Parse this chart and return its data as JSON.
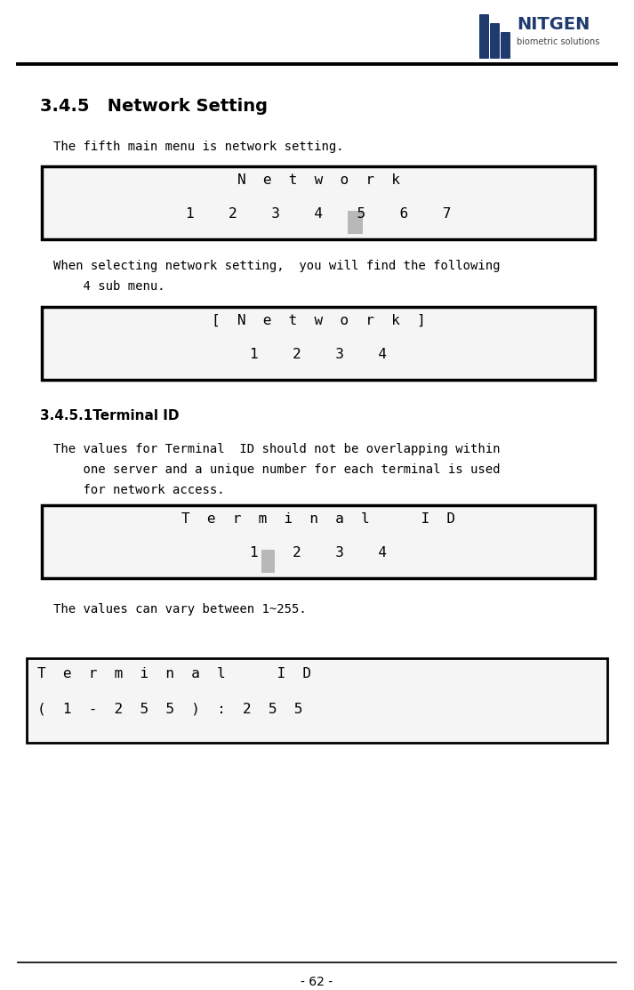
{
  "page_num": "- 62 -",
  "section_title": "3.4.5   Network Setting",
  "para1": "The fifth main menu is network setting.",
  "box1_row1": "          N  e  t  w  o  r  k",
  "box1_row2": "  1    2    3    4    5    6    7",
  "para2_line1": "When selecting network setting,  you will find the following",
  "para2_line2": "    4 sub menu.",
  "box2_row1": "        [  N  e  t  w  o  r  k  ]",
  "box2_row2": "        1    2    3    4",
  "subsection_title": "3.4.5.1Terminal ID",
  "para3_line1": "The values for Terminal  ID should not be overlapping within",
  "para3_line2": "    one server and a unique number for each terminal is used",
  "para3_line3": "    for network access.",
  "box3_row1": "      T  e  r  m  i  n  a  l      I  D",
  "box3_row2": "      1    2    3    4",
  "para4": "The values can vary between 1~255.",
  "box4_row1": "T  e  r  m  i  n  a  l      I  D",
  "box4_row2": "(  1  -  2  5  5  )  :  2  5  5",
  "bg_color": "#ffffff",
  "text_color": "#000000",
  "box_border_color": "#000000",
  "highlight_color": "#b8b8b8",
  "mono_font": "monospace",
  "nitgen_text_color": "#1e3a6e",
  "nitgen_sub_color": "#444444",
  "logo_bar_color": "#1e3a6e"
}
